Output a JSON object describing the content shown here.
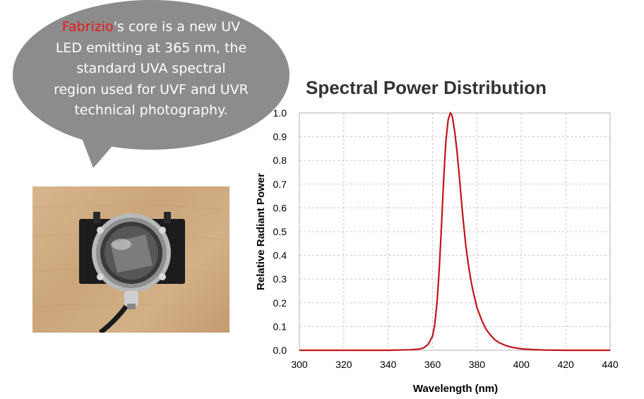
{
  "callout": {
    "highlight": "Fabrizio",
    "text": "'s core is a new UV LED emitting at 365 nm, the standard UVA spectral region used for UVF and UVR technical photography."
  },
  "photo": {
    "subject-icon": "uv-led-lamp-icon"
  },
  "colors": {
    "bubble": "#8c8c8c",
    "highlight": "#e8141b",
    "curve": "#c0151b",
    "grid": "#c8c8c8"
  },
  "chart_data": {
    "type": "line",
    "title": "Spectral Power Distribution",
    "xlabel": "Wavelength (nm)",
    "ylabel": "Relative Radiant Power",
    "xlim": [
      300,
      440
    ],
    "ylim": [
      0,
      1.0
    ],
    "xticks": [
      "300",
      "320",
      "340",
      "360",
      "380",
      "400",
      "420",
      "440"
    ],
    "yticks": [
      "0.0",
      "0.1",
      "0.2",
      "0.3",
      "0.4",
      "0.5",
      "0.6",
      "0.7",
      "0.8",
      "0.9",
      "1.0"
    ],
    "grid": true,
    "series": [
      {
        "x": [
          300,
          340,
          350,
          354,
          356,
          358,
          360,
          361,
          362,
          363,
          364,
          365,
          366,
          367,
          368,
          368.5,
          369,
          370,
          371,
          372,
          373,
          374,
          375,
          376,
          377,
          378,
          379,
          380,
          382,
          384,
          386,
          388,
          390,
          393,
          396,
          400,
          405,
          410,
          420,
          440
        ],
        "y": [
          0,
          0,
          0.002,
          0.005,
          0.01,
          0.025,
          0.06,
          0.11,
          0.2,
          0.34,
          0.52,
          0.72,
          0.88,
          0.97,
          1.0,
          0.995,
          0.98,
          0.92,
          0.84,
          0.74,
          0.63,
          0.53,
          0.44,
          0.37,
          0.31,
          0.26,
          0.22,
          0.18,
          0.13,
          0.09,
          0.065,
          0.045,
          0.032,
          0.02,
          0.012,
          0.006,
          0.003,
          0.001,
          0,
          0
        ]
      }
    ]
  }
}
